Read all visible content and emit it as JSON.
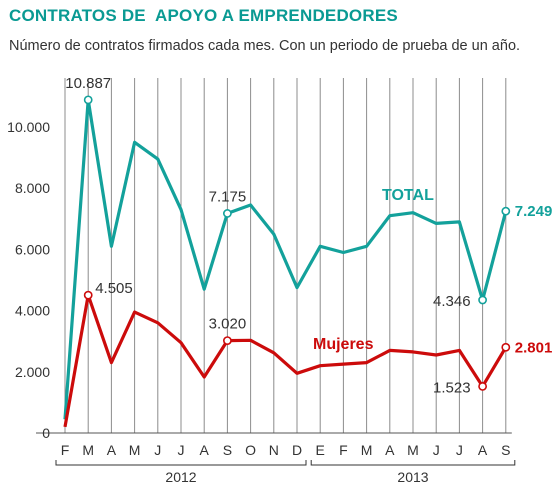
{
  "title": "CONTRATOS DE  APOYO A EMPRENDEDORES",
  "subtitle": "Número de contratos firmados cada mes. Con un periodo de prueba de un año.",
  "chart_data": {
    "type": "line",
    "categories": [
      "F",
      "M",
      "A",
      "M",
      "J",
      "J",
      "A",
      "S",
      "O",
      "N",
      "D",
      "E",
      "F",
      "M",
      "A",
      "M",
      "J",
      "J",
      "A",
      "S"
    ],
    "years": [
      {
        "label": "2012",
        "from": 0,
        "to": 10
      },
      {
        "label": "2013",
        "from": 11,
        "to": 19
      }
    ],
    "ylim": [
      0,
      11000
    ],
    "yticks": [
      {
        "value": 0,
        "label": "0"
      },
      {
        "value": 2000,
        "label": "2.000"
      },
      {
        "value": 4000,
        "label": "4.000"
      },
      {
        "value": 6000,
        "label": "6.000"
      },
      {
        "value": 8000,
        "label": "8.000"
      },
      {
        "value": 10000,
        "label": "10.000"
      }
    ],
    "grid": "vertical",
    "series": [
      {
        "name": "TOTAL",
        "color": "#13a19b",
        "values": [
          450,
          10887,
          6100,
          9500,
          8950,
          7300,
          4700,
          7175,
          7450,
          6500,
          4750,
          6100,
          5900,
          6100,
          7100,
          7200,
          6850,
          6900,
          4346,
          7249
        ],
        "annotations": [
          {
            "index": 1,
            "label": "10.887",
            "placement": "above"
          },
          {
            "index": 7,
            "label": "7.175",
            "placement": "above"
          },
          {
            "index": 18,
            "label": "4.346",
            "placement": "left"
          },
          {
            "index": 19,
            "label": "7.249",
            "placement": "right",
            "bold": true
          }
        ]
      },
      {
        "name": "Mujeres",
        "color": "#cc0b0b",
        "values": [
          200,
          4505,
          2300,
          3950,
          3600,
          2950,
          1830,
          3020,
          3030,
          2620,
          1950,
          2200,
          2250,
          2300,
          2700,
          2650,
          2550,
          2700,
          1523,
          2801
        ],
        "annotations": [
          {
            "index": 1,
            "label": "4.505",
            "placement": "right-above"
          },
          {
            "index": 7,
            "label": "3.020",
            "placement": "above"
          },
          {
            "index": 18,
            "label": "1.523",
            "placement": "left"
          },
          {
            "index": 19,
            "label": "2.801",
            "placement": "right",
            "bold": true
          }
        ]
      }
    ]
  }
}
